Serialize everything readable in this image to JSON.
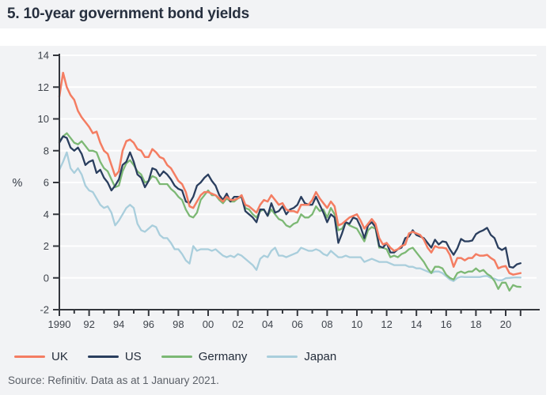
{
  "header": {
    "title": "5. 10-year government bond yields"
  },
  "footer": {
    "source": "Source: Refinitiv. Data as at 1 January 2021."
  },
  "colors": {
    "panel_background": "#f2f3f5",
    "gridline": "#ffffff",
    "axis": "#33363c",
    "uk": "#f47d62",
    "us": "#2a3e5e",
    "germany": "#7cb874",
    "japan": "#a9cedc"
  },
  "chart_data": {
    "type": "line",
    "title": "5. 10-year government bond yields",
    "xlabel": "",
    "ylabel": "%",
    "ylim": [
      -2,
      14
    ],
    "xlim": [
      1990,
      2021
    ],
    "grid": "horizontal-white",
    "legend_position": "bottom",
    "y_ticks": [
      14,
      12,
      10,
      8,
      6,
      4,
      2,
      0,
      -2
    ],
    "x_tick_years": [
      1990,
      1992,
      1994,
      1996,
      1998,
      2000,
      2002,
      2004,
      2006,
      2008,
      2010,
      2012,
      2014,
      2016,
      2018,
      2020
    ],
    "x_tick_labels": [
      "1990",
      "92",
      "94",
      "96",
      "98",
      "00",
      "02",
      "04",
      "06",
      "08",
      "10",
      "12",
      "14",
      "16",
      "18",
      "20"
    ],
    "x_start": 1990,
    "x_step": 0.25,
    "series": [
      {
        "name": "UK",
        "color": "#f47d62",
        "values": [
          11.4,
          12.9,
          12.0,
          11.5,
          11.2,
          10.5,
          10.1,
          9.8,
          9.5,
          9.1,
          9.2,
          8.5,
          8.0,
          7.8,
          7.1,
          6.4,
          6.7,
          8.0,
          8.6,
          8.7,
          8.5,
          8.1,
          8.0,
          7.6,
          7.6,
          8.1,
          7.9,
          7.6,
          7.5,
          7.1,
          6.9,
          6.5,
          6.1,
          5.9,
          5.4,
          4.5,
          4.4,
          4.8,
          5.2,
          5.4,
          5.4,
          5.3,
          5.2,
          5.0,
          4.8,
          5.1,
          4.9,
          4.9,
          5.0,
          5.2,
          4.6,
          4.5,
          4.3,
          4.1,
          4.6,
          4.9,
          4.8,
          5.2,
          4.9,
          4.6,
          4.7,
          4.3,
          4.2,
          4.2,
          4.1,
          4.6,
          4.6,
          4.6,
          4.9,
          5.4,
          5.0,
          4.7,
          4.4,
          4.8,
          4.5,
          3.3,
          3.4,
          3.6,
          3.8,
          3.9,
          4.0,
          3.6,
          3.1,
          3.4,
          3.7,
          3.4,
          2.5,
          2.1,
          2.2,
          1.9,
          1.7,
          1.8,
          2.0,
          2.1,
          2.8,
          2.9,
          2.8,
          2.7,
          2.4,
          1.9,
          1.6,
          2.0,
          1.9,
          1.9,
          1.85,
          1.45,
          0.7,
          1.25,
          1.25,
          1.1,
          1.25,
          1.25,
          1.5,
          1.4,
          1.4,
          1.45,
          1.25,
          1.1,
          0.6,
          0.7,
          0.75,
          0.3,
          0.2,
          0.25,
          0.3
        ]
      },
      {
        "name": "US",
        "color": "#2a3e5e",
        "values": [
          8.5,
          8.9,
          8.8,
          8.2,
          8.0,
          8.2,
          7.8,
          7.1,
          7.3,
          7.4,
          6.6,
          6.8,
          6.3,
          6.0,
          5.5,
          5.8,
          6.2,
          7.1,
          7.3,
          7.9,
          7.3,
          6.5,
          6.3,
          5.7,
          6.1,
          6.9,
          6.8,
          6.4,
          6.7,
          6.5,
          6.2,
          5.8,
          5.6,
          5.5,
          4.8,
          4.7,
          5.1,
          5.8,
          6.0,
          6.3,
          6.5,
          6.1,
          5.8,
          5.2,
          4.9,
          5.3,
          4.8,
          5.1,
          5.1,
          5.1,
          4.2,
          4.0,
          3.8,
          3.5,
          4.3,
          4.3,
          3.9,
          4.7,
          4.1,
          4.2,
          4.5,
          4.0,
          4.3,
          4.4,
          4.6,
          5.1,
          4.7,
          4.6,
          4.6,
          5.1,
          4.6,
          4.1,
          3.5,
          4.0,
          3.8,
          2.2,
          2.8,
          3.5,
          3.4,
          3.8,
          3.7,
          3.2,
          2.5,
          3.3,
          3.5,
          3.2,
          2.0,
          1.9,
          2.2,
          1.6,
          1.6,
          1.8,
          1.9,
          2.5,
          2.6,
          3.0,
          2.7,
          2.6,
          2.5,
          2.2,
          1.9,
          2.4,
          2.1,
          2.3,
          2.25,
          1.8,
          1.45,
          1.85,
          2.45,
          2.3,
          2.3,
          2.35,
          2.75,
          2.9,
          3.0,
          3.15,
          2.7,
          2.5,
          1.9,
          1.75,
          1.9,
          0.7,
          0.65,
          0.85,
          0.92
        ]
      },
      {
        "name": "Germany",
        "color": "#7cb874",
        "values": [
          8.6,
          8.9,
          9.1,
          8.8,
          8.5,
          8.4,
          8.6,
          8.3,
          8.0,
          8.0,
          7.9,
          7.3,
          6.9,
          6.7,
          6.2,
          5.7,
          5.8,
          6.7,
          7.2,
          7.4,
          7.1,
          6.7,
          6.5,
          6.0,
          6.1,
          6.4,
          6.3,
          5.9,
          5.9,
          5.9,
          5.6,
          5.4,
          5.1,
          4.9,
          4.3,
          3.9,
          3.8,
          4.1,
          4.9,
          5.2,
          5.5,
          5.2,
          5.2,
          4.9,
          4.7,
          5.0,
          4.8,
          4.8,
          5.0,
          5.1,
          4.4,
          4.3,
          4.0,
          3.8,
          4.2,
          4.3,
          3.9,
          4.3,
          4.0,
          3.7,
          3.6,
          3.3,
          3.2,
          3.4,
          3.5,
          4.0,
          3.8,
          3.8,
          4.0,
          4.5,
          4.2,
          4.3,
          3.8,
          4.4,
          4.0,
          3.0,
          3.1,
          3.5,
          3.3,
          3.2,
          3.1,
          2.7,
          2.3,
          3.0,
          3.2,
          3.1,
          1.9,
          1.9,
          1.8,
          1.3,
          1.4,
          1.3,
          1.5,
          1.6,
          1.8,
          1.9,
          1.6,
          1.3,
          1.0,
          0.6,
          0.3,
          0.7,
          0.7,
          0.6,
          0.2,
          0.0,
          -0.1,
          0.3,
          0.4,
          0.3,
          0.4,
          0.4,
          0.6,
          0.4,
          0.5,
          0.25,
          0.1,
          -0.2,
          -0.7,
          -0.3,
          -0.3,
          -0.8,
          -0.45,
          -0.55,
          -0.57
        ]
      },
      {
        "name": "Japan",
        "color": "#a9cedc",
        "values": [
          6.8,
          7.3,
          7.9,
          6.9,
          6.6,
          6.9,
          6.5,
          5.8,
          5.5,
          5.4,
          5.0,
          4.6,
          4.4,
          4.5,
          4.1,
          3.3,
          3.6,
          4.0,
          4.4,
          4.6,
          4.4,
          3.4,
          3.0,
          2.9,
          3.1,
          3.3,
          3.2,
          2.7,
          2.5,
          2.5,
          2.2,
          1.8,
          1.8,
          1.5,
          1.1,
          0.9,
          2.0,
          1.7,
          1.8,
          1.8,
          1.8,
          1.7,
          1.8,
          1.6,
          1.4,
          1.3,
          1.4,
          1.3,
          1.5,
          1.4,
          1.2,
          1.0,
          0.8,
          0.5,
          1.2,
          1.4,
          1.3,
          1.7,
          1.9,
          1.4,
          1.4,
          1.3,
          1.4,
          1.5,
          1.6,
          1.9,
          1.8,
          1.7,
          1.7,
          1.8,
          1.7,
          1.5,
          1.4,
          1.7,
          1.5,
          1.3,
          1.3,
          1.4,
          1.3,
          1.3,
          1.3,
          1.3,
          1.0,
          1.1,
          1.2,
          1.1,
          1.0,
          1.0,
          1.0,
          0.9,
          0.8,
          0.8,
          0.8,
          0.8,
          0.7,
          0.7,
          0.6,
          0.6,
          0.5,
          0.4,
          0.3,
          0.4,
          0.4,
          0.3,
          0.1,
          -0.1,
          -0.2,
          0.0,
          0.07,
          0.05,
          0.05,
          0.05,
          0.05,
          0.05,
          0.1,
          0.12,
          0.0,
          -0.05,
          -0.15,
          -0.15,
          -0.02,
          0.0,
          0.02,
          0.03,
          0.02
        ]
      }
    ]
  }
}
